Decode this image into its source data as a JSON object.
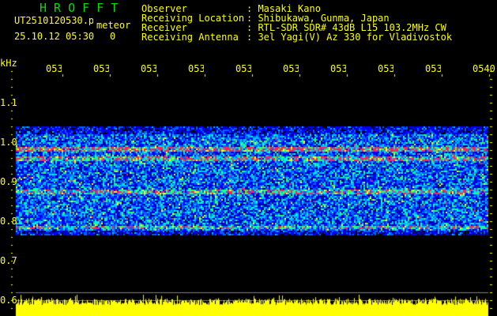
{
  "header": {
    "title": "HROFFT",
    "file_name": "UT2510120530.png",
    "mode": "meteor",
    "datetime": "25.10.12 05:30",
    "count": "0",
    "info": [
      {
        "label": "Observer",
        "value": "Masaki Kano"
      },
      {
        "label": "Receiving Location",
        "value": "Shibukawa, Gunma, Japan"
      },
      {
        "label": "Receiver",
        "value": "RTL-SDR SDR# 43dB L15 103.2MHz CW"
      },
      {
        "label": "Receiving Antenna",
        "value": "3el Yagi(V) Az 330 for Vladivostok"
      }
    ]
  },
  "axis": {
    "unit": "kHz",
    "time_ticks": [
      "0531",
      "0532",
      "0533",
      "0534",
      "0535",
      "0536",
      "0537",
      "0538",
      "0539",
      "0540"
    ],
    "freq_ticks": [
      "1.1",
      "1.0",
      "0.9",
      "0.8",
      "0.7",
      "0.6"
    ]
  },
  "colors": {
    "text": "#ffff00",
    "title": "#00e000",
    "level_bar": "#ffff00",
    "grid": "#808080"
  }
}
